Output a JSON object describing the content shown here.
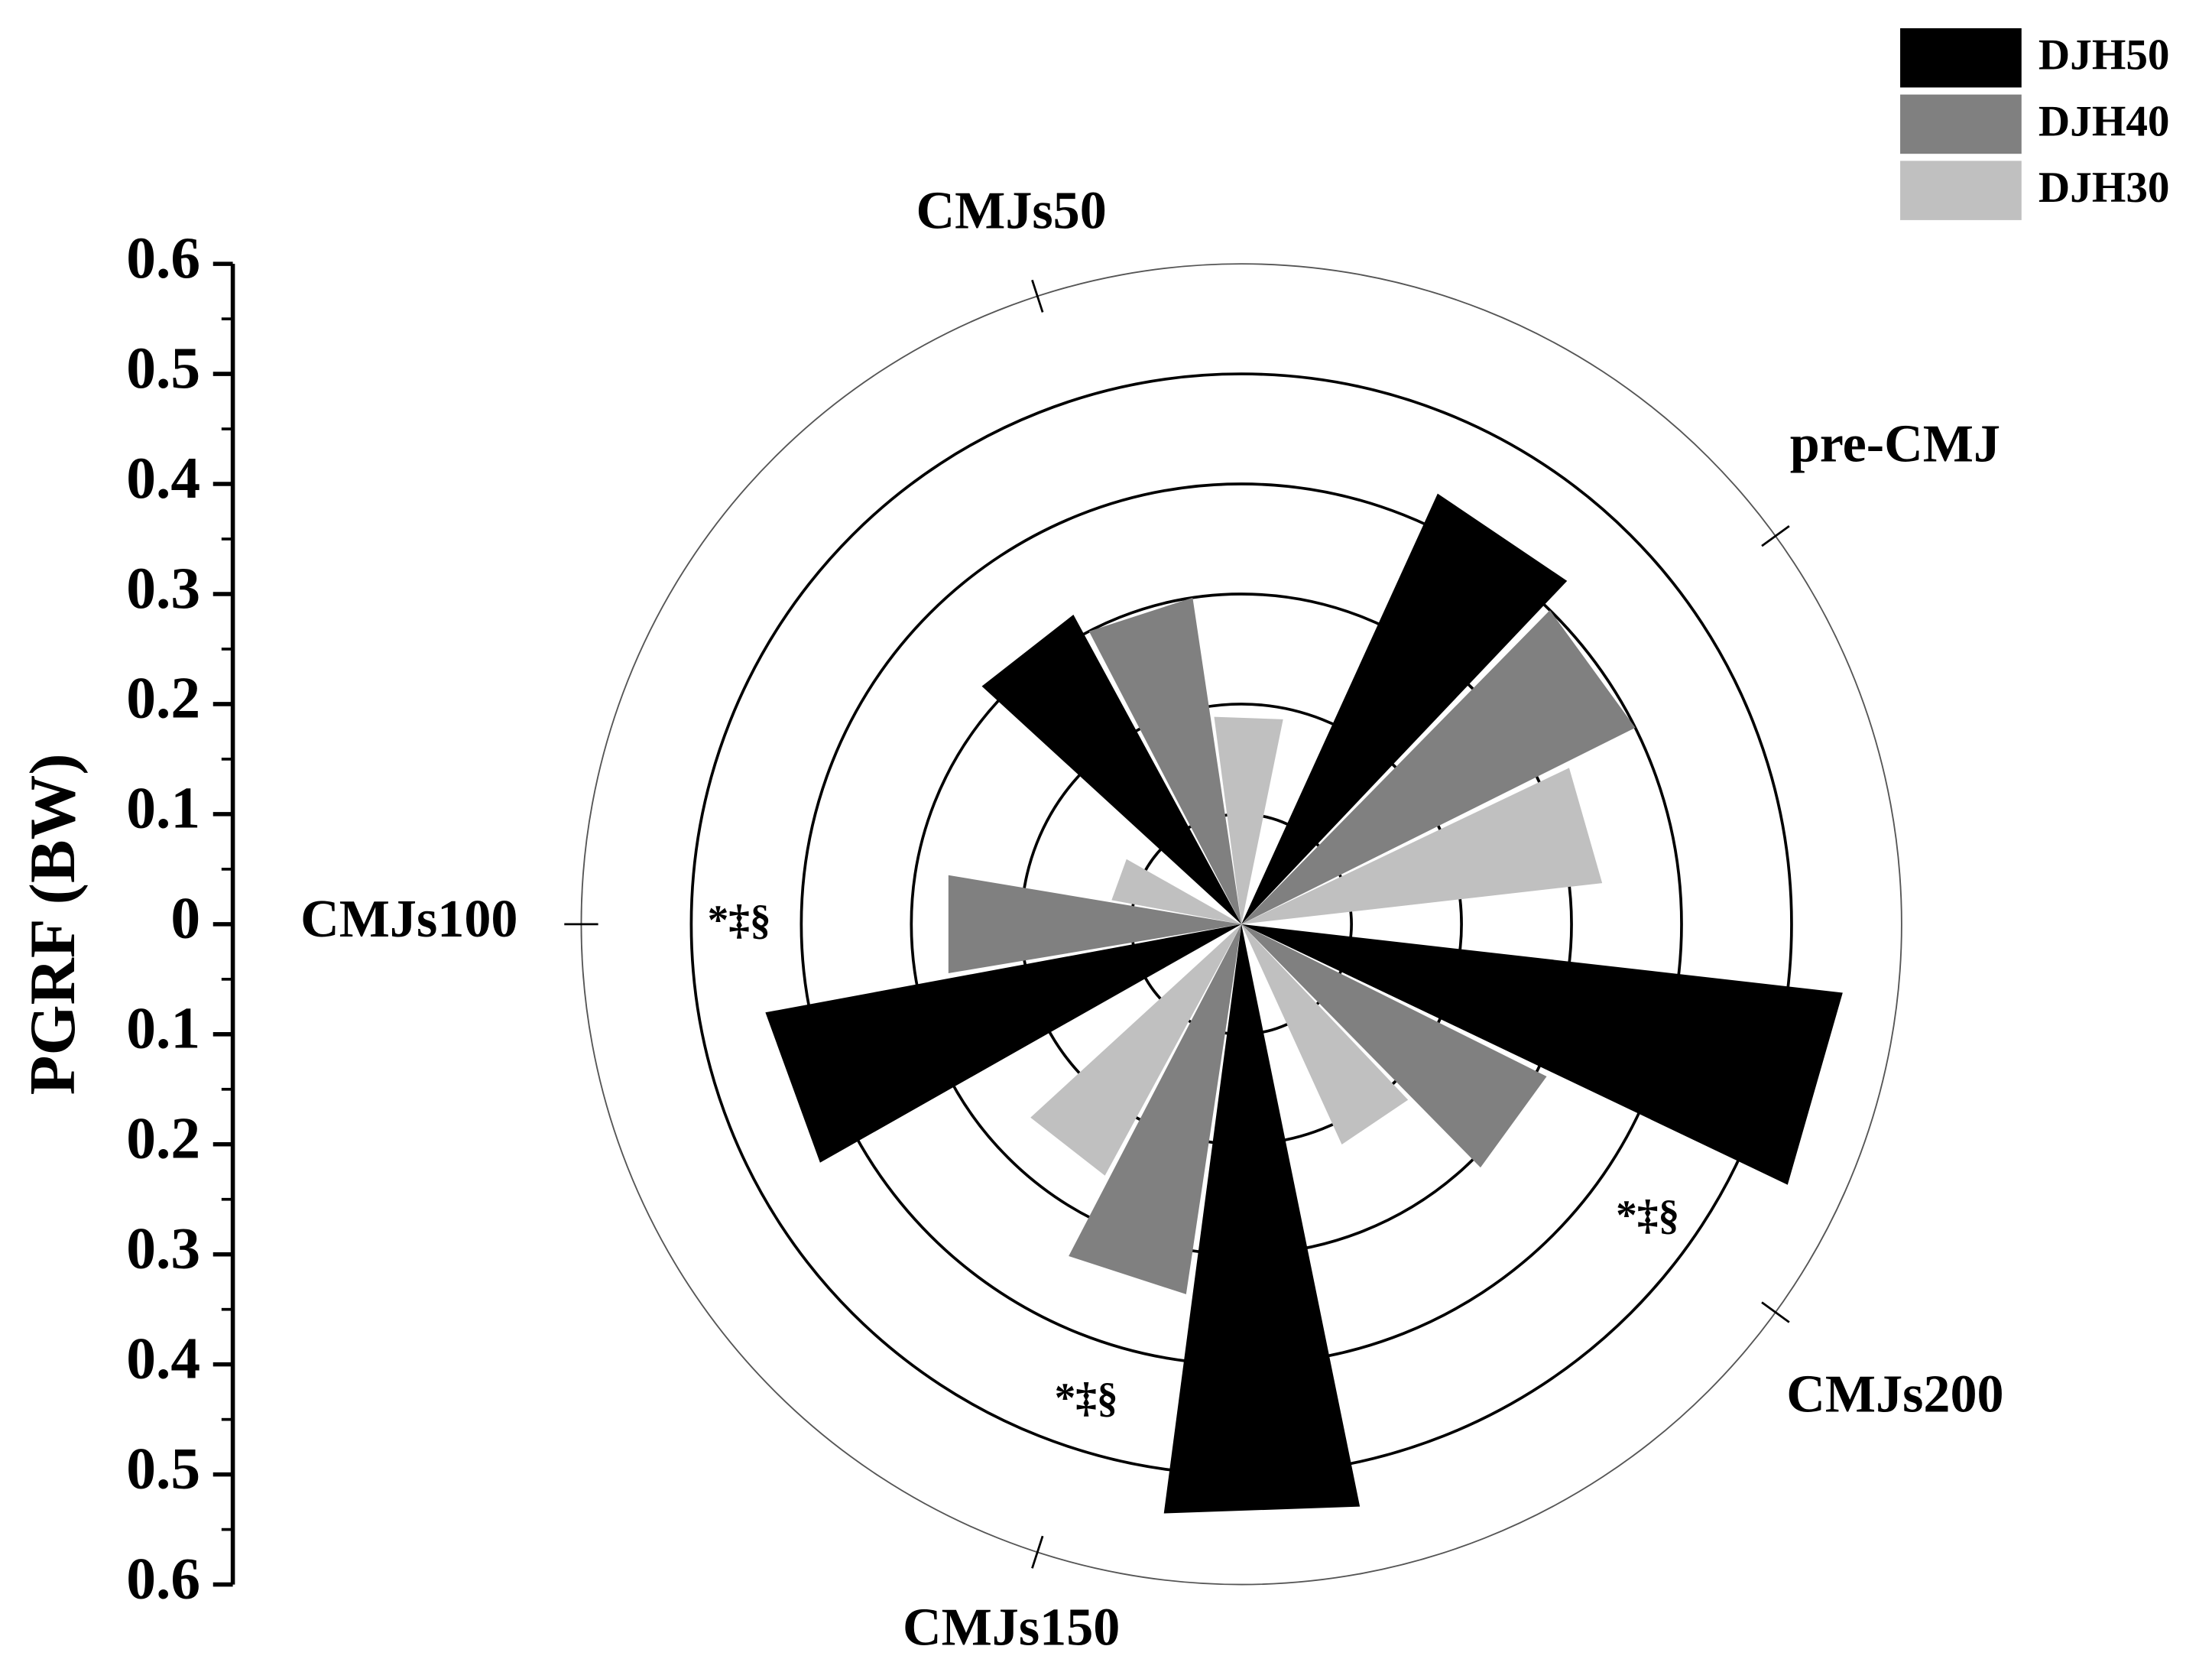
{
  "chart_data": {
    "type": "polar-bar",
    "y_label": "PGRF (BW)",
    "categories": [
      "pre-CMJ",
      "CMJs50",
      "CMJs100",
      "CMJs150",
      "CMJs200"
    ],
    "series": [
      {
        "name": "DJH50",
        "color": "#000000",
        "values": [
          0.43,
          0.32,
          0.44,
          0.54,
          0.55
        ]
      },
      {
        "name": "DJH40",
        "color": "#808080",
        "values": [
          0.4,
          0.3,
          0.27,
          0.34,
          0.31
        ]
      },
      {
        "name": "DJH30",
        "color": "#c0c0c0",
        "values": [
          0.33,
          0.19,
          0.12,
          0.26,
          0.22
        ]
      }
    ],
    "rlim": [
      0,
      0.6
    ],
    "rgrid": [
      0.1,
      0.2,
      0.3,
      0.4,
      0.5,
      0.6
    ],
    "yticks": [
      0.6,
      0.5,
      0.4,
      0.3,
      0.2,
      0.1,
      0.0,
      0.1,
      0.2,
      0.3,
      0.4,
      0.5,
      0.6
    ],
    "annotations": [
      {
        "text": "*‡§",
        "category": "CMJs100"
      },
      {
        "text": "*‡§",
        "category": "CMJs200"
      },
      {
        "text": "*‡§",
        "category": "CMJs150"
      }
    ],
    "legend": "top-right"
  }
}
